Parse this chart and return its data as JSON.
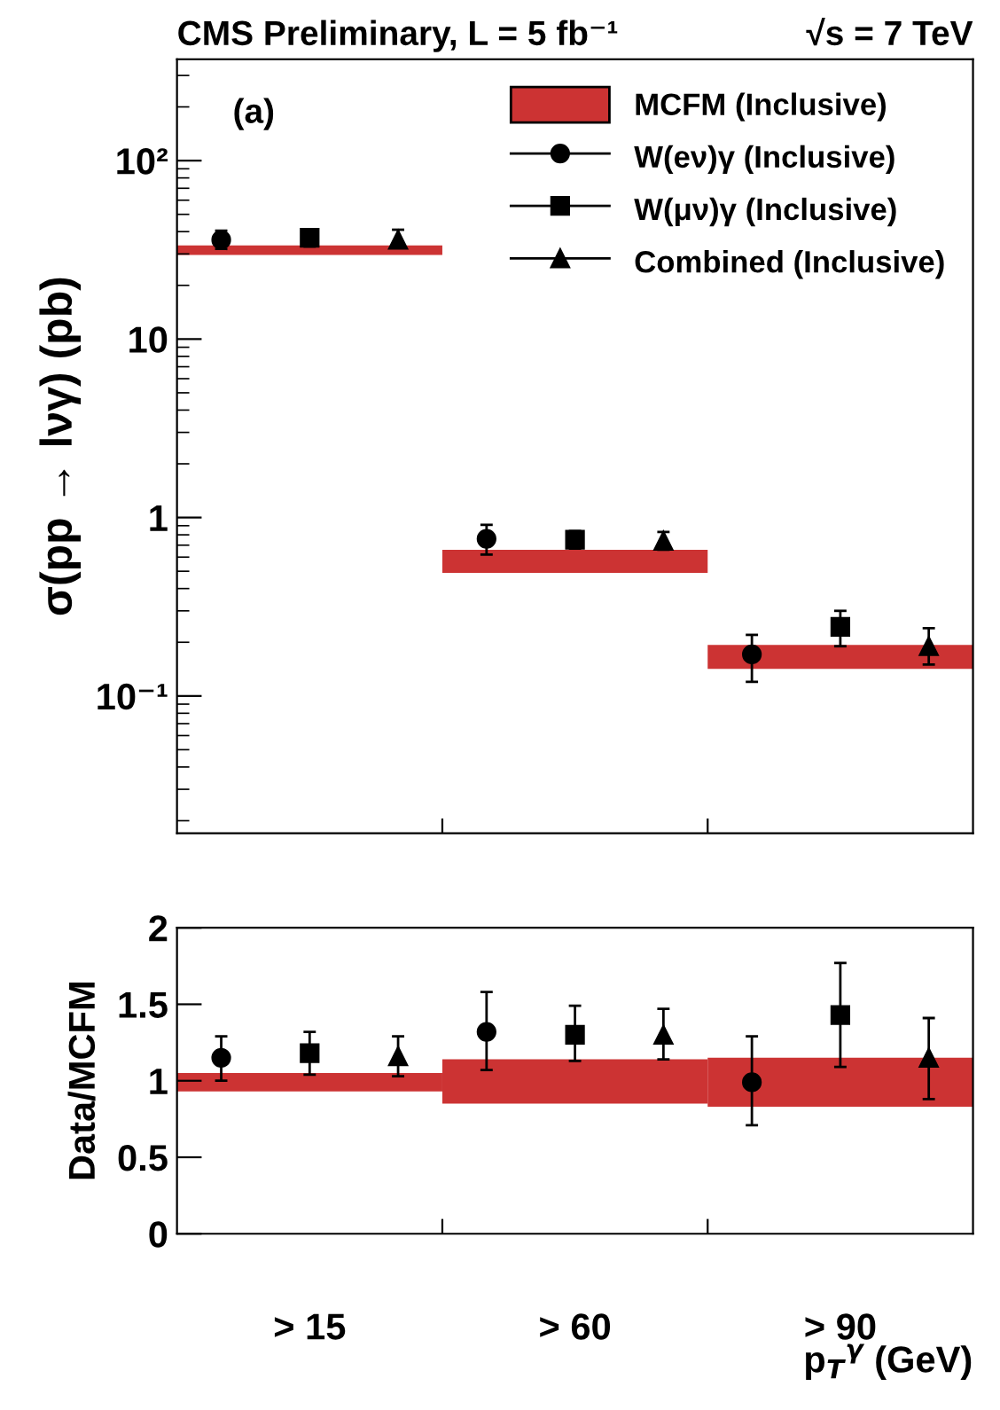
{
  "chart_data": [
    {
      "type": "scatter",
      "title": "CMS Preliminary, L = 5 fb⁻¹",
      "subtitle": "√s = 7 TeV",
      "ylabel": "σ(pp → lνγ) (pb)",
      "annotations": [
        "(a)"
      ],
      "log": "y",
      "categories": [
        null,
        null,
        null
      ],
      "ylim": [
        0.017,
        370
      ],
      "yticks": [
        {
          "value": 0.1,
          "label": "10⁻¹"
        },
        1,
        10,
        {
          "value": 100,
          "label": "10²"
        }
      ],
      "tick_labels": "y",
      "legend": "top right",
      "grid": false,
      "series": [
        {
          "name": "MCFM (Inclusive)",
          "type": "bar",
          "color": "#cc3333",
          "base": [
            29.6,
            0.49,
            0.142
          ],
          "values": [
            3.9,
            0.17,
            0.051
          ]
        },
        {
          "name": "W(eν)γ (Inclusive)",
          "marker": "circle",
          "color": "#000000",
          "values": [
            36,
            0.76,
            0.171
          ],
          "errors": [
            [
              32,
              40.5
            ],
            [
              0.62,
              0.91
            ],
            [
              0.12,
              0.22
            ]
          ]
        },
        {
          "name": "W(μν)γ (Inclusive)",
          "marker": "square",
          "color": "#000000",
          "values": [
            37,
            0.75,
            0.244
          ],
          "errors": [
            [
              33,
              41
            ],
            [
              0.67,
              0.84
            ],
            [
              0.19,
              0.3
            ]
          ]
        },
        {
          "name": "Combined (Inclusive)",
          "marker": "triangle",
          "color": "#000000",
          "values": [
            36,
            0.74,
            0.19
          ],
          "errors": [
            [
              32.5,
              41
            ],
            [
              0.66,
              0.83
            ],
            [
              0.15,
              0.24
            ]
          ]
        }
      ]
    },
    {
      "type": "scatter",
      "ylabel": "Data/MCFM",
      "xlabel": "p$_{T}$$^{γ}$ (GeV)",
      "categories": [
        "> 15",
        "> 60",
        "> 90"
      ],
      "ylim": [
        0,
        2
      ],
      "yticks": [
        0,
        0.5,
        1,
        1.5,
        2
      ],
      "legend": false,
      "grid": false,
      "series": [
        {
          "type": "bar",
          "color": "#cc3333",
          "base": [
            0.93,
            0.85,
            0.83
          ],
          "values": [
            0.12,
            0.29,
            0.32
          ]
        },
        {
          "marker": "circle",
          "color": "#000000",
          "values": [
            1.15,
            1.32,
            0.99
          ],
          "errors": [
            [
              1.0,
              1.29
            ],
            [
              1.07,
              1.58
            ],
            [
              0.71,
              1.29
            ]
          ]
        },
        {
          "marker": "square",
          "color": "#000000",
          "values": [
            1.18,
            1.3,
            1.43
          ],
          "errors": [
            [
              1.04,
              1.32
            ],
            [
              1.13,
              1.49
            ],
            [
              1.09,
              1.77
            ]
          ]
        },
        {
          "marker": "triangle",
          "color": "#000000",
          "values": [
            1.16,
            1.3,
            1.15
          ],
          "errors": [
            [
              1.03,
              1.29
            ],
            [
              1.14,
              1.47
            ],
            [
              0.88,
              1.41
            ]
          ]
        }
      ]
    }
  ]
}
